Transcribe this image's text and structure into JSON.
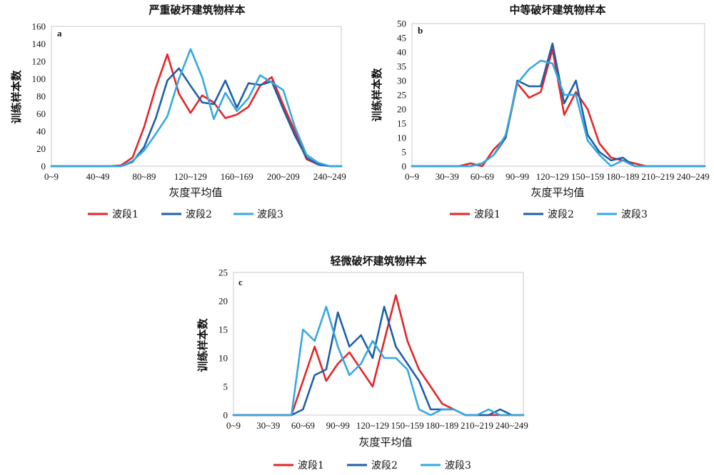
{
  "chart_data": [
    {
      "type": "line",
      "panel": "a",
      "title": "严重破坏建筑物样本",
      "xlabel": "灰度平均值",
      "ylabel": "训练样本数",
      "x_tick_labels": [
        "0~9",
        "40~49",
        "80~89",
        "120~129",
        "160~169",
        "200~209",
        "240~249"
      ],
      "yticks": [
        0,
        20,
        40,
        60,
        80,
        100,
        120,
        140,
        160
      ],
      "ylim": [
        0,
        160
      ],
      "grid": false,
      "legend": "bottom",
      "series": [
        {
          "name": "波段1",
          "color": "#E3262A",
          "values": [
            0,
            0,
            0,
            0,
            0,
            0,
            1,
            10,
            45,
            90,
            128,
            83,
            61,
            81,
            73,
            55,
            59,
            68,
            92,
            102,
            70,
            40,
            8,
            2,
            0,
            0
          ]
        },
        {
          "name": "波段2",
          "color": "#1E5FA7",
          "values": [
            0,
            0,
            0,
            0,
            0,
            0,
            0,
            5,
            22,
            55,
            98,
            112,
            92,
            73,
            71,
            98,
            67,
            95,
            93,
            97,
            65,
            35,
            10,
            2,
            0,
            0
          ]
        },
        {
          "name": "波段3",
          "color": "#35A8DF",
          "values": [
            0,
            0,
            0,
            0,
            0,
            0,
            0,
            6,
            18,
            37,
            57,
            100,
            134,
            102,
            54,
            84,
            63,
            78,
            104,
            96,
            87,
            45,
            13,
            4,
            0,
            0
          ]
        }
      ]
    },
    {
      "type": "line",
      "panel": "b",
      "title": "中等破坏建筑物样本",
      "xlabel": "灰度平均值",
      "ylabel": "训练样本数",
      "x_tick_labels": [
        "0~9",
        "30~39",
        "60~69",
        "90~99",
        "120~129",
        "150~159",
        "180~189",
        "210~219",
        "240~249"
      ],
      "yticks": [
        0,
        5,
        10,
        15,
        20,
        25,
        30,
        35,
        40,
        45,
        50
      ],
      "ylim": [
        0,
        50
      ],
      "grid": false,
      "legend": "bottom",
      "series": [
        {
          "name": "波段1",
          "color": "#E3262A",
          "values": [
            0,
            0,
            0,
            0,
            0,
            1,
            0,
            6,
            10,
            29,
            24,
            26,
            41,
            18,
            26,
            20,
            8,
            3,
            2,
            1,
            0,
            0,
            0,
            0,
            0,
            0
          ]
        },
        {
          "name": "波段2",
          "color": "#1E5FA7",
          "values": [
            0,
            0,
            0,
            0,
            0,
            0,
            1,
            4,
            10,
            30,
            28,
            28,
            43,
            22,
            30,
            11,
            5,
            2,
            3,
            0,
            0,
            0,
            0,
            0,
            0,
            0
          ]
        },
        {
          "name": "波段3",
          "color": "#35A8DF",
          "values": [
            0,
            0,
            0,
            0,
            0,
            0,
            1,
            4,
            11,
            29,
            34,
            37,
            36,
            25,
            25,
            9,
            4,
            0,
            2,
            0,
            0,
            0,
            0,
            0,
            0,
            0
          ]
        }
      ]
    },
    {
      "type": "line",
      "panel": "c",
      "title": "轻微破坏建筑物样本",
      "xlabel": "灰度平均值",
      "ylabel": "训练样本数",
      "x_tick_labels": [
        "0~9",
        "30~39",
        "60~69",
        "90~99",
        "120~129",
        "150~159",
        "180~189",
        "210~219",
        "240~249"
      ],
      "yticks": [
        0,
        5,
        10,
        15,
        20,
        25
      ],
      "ylim": [
        0,
        25
      ],
      "grid": false,
      "legend": "bottom",
      "series": [
        {
          "name": "波段1",
          "color": "#E3262A",
          "values": [
            0,
            0,
            0,
            0,
            0,
            0,
            6,
            12,
            6,
            9,
            11,
            8,
            5,
            13,
            21,
            13,
            8,
            5,
            2,
            1,
            0,
            0,
            0,
            0,
            0,
            0
          ]
        },
        {
          "name": "波段2",
          "color": "#1E5FA7",
          "values": [
            0,
            0,
            0,
            0,
            0,
            0,
            1,
            7,
            8,
            18,
            12,
            14,
            10,
            19,
            12,
            9,
            6,
            1,
            1,
            1,
            0,
            0,
            0,
            1,
            0,
            0
          ]
        },
        {
          "name": "波段3",
          "color": "#35A8DF",
          "values": [
            0,
            0,
            0,
            0,
            0,
            0,
            15,
            13,
            19,
            12,
            7,
            9,
            13,
            10,
            10,
            8,
            1,
            0,
            1,
            1,
            0,
            0,
            1,
            0,
            0,
            0
          ]
        }
      ]
    }
  ]
}
